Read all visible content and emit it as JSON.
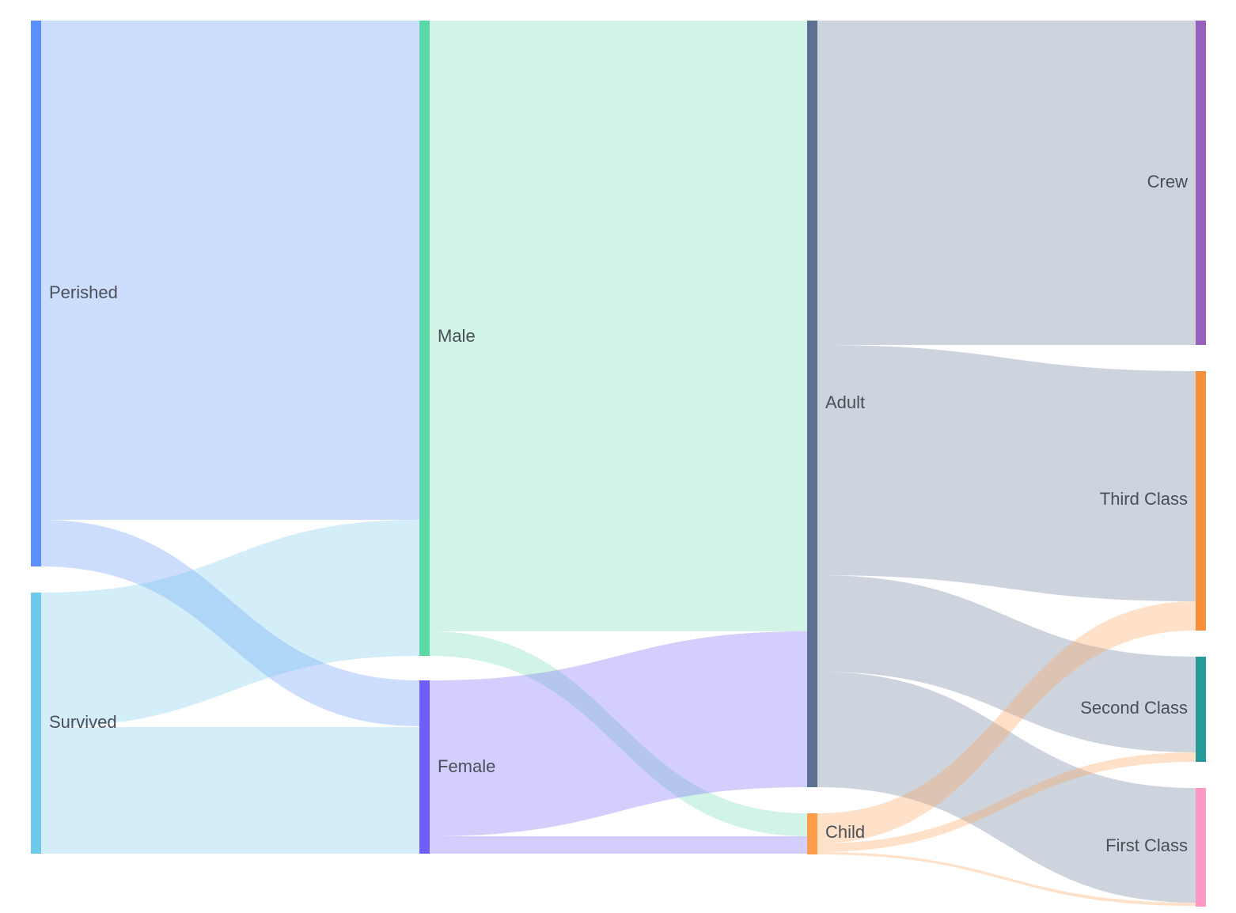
{
  "diagram": {
    "type": "sankey",
    "nodes": [
      {
        "id": "perished",
        "label": "Perished",
        "color": "#5b8ff9"
      },
      {
        "id": "survived",
        "label": "Survived",
        "color": "#6dc8ec"
      },
      {
        "id": "male",
        "label": "Male",
        "color": "#5ad8a6"
      },
      {
        "id": "female",
        "label": "Female",
        "color": "#6f5ef9"
      },
      {
        "id": "adult",
        "label": "Adult",
        "color": "#5d7092"
      },
      {
        "id": "child",
        "label": "Child",
        "color": "#ff9d4d"
      },
      {
        "id": "crew",
        "label": "Crew",
        "color": "#9661bc"
      },
      {
        "id": "third",
        "label": "Third Class",
        "color": "#f6903d"
      },
      {
        "id": "second",
        "label": "Second Class",
        "color": "#269a99"
      },
      {
        "id": "first",
        "label": "First Class",
        "color": "#ff99c3"
      }
    ]
  }
}
